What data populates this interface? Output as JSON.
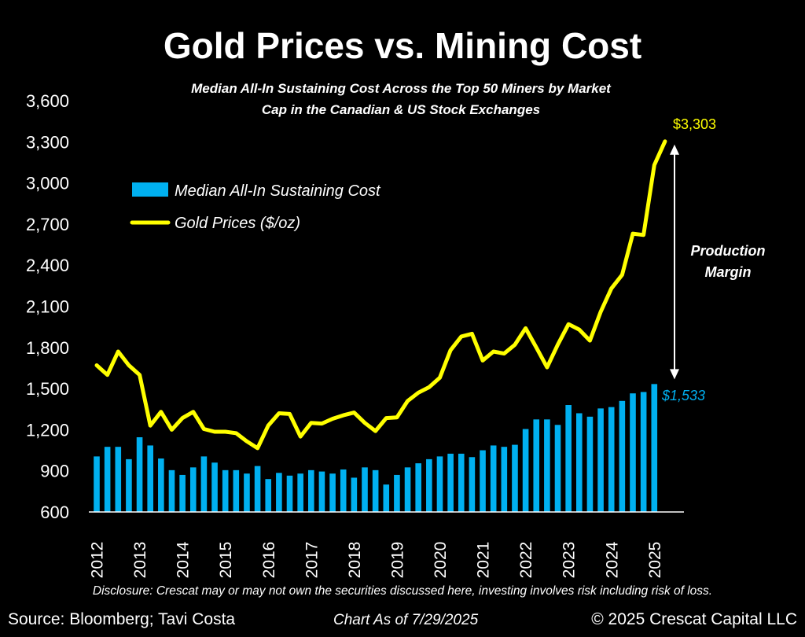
{
  "colors": {
    "bar": "#00b0f0",
    "line": "#ffff00",
    "text": "#ffffff",
    "background": "#000000"
  },
  "chart_data": {
    "type": "bar+line",
    "title": "Gold Prices vs. Mining Cost",
    "subtitle_line1": "Median All-In Sustaining Cost Across the Top 50 Miners by Market",
    "subtitle_line2": "Cap in the Canadian & US Stock Exchanges",
    "ylim": [
      600,
      3600
    ],
    "yticks": [
      "600",
      "900",
      "1,200",
      "1,500",
      "1,800",
      "2,100",
      "2,400",
      "2,700",
      "3,000",
      "3,300",
      "3,600"
    ],
    "xticks": [
      "2012",
      "2013",
      "2014",
      "2015",
      "2016",
      "2017",
      "2018",
      "2019",
      "2020",
      "2021",
      "2022",
      "2023",
      "2024",
      "2025"
    ],
    "grid": false,
    "legend_position": "upper-left",
    "series": [
      {
        "name": "Median All-In Sustaining Cost",
        "kind": "bar",
        "values": [
          1005,
          1075,
          1075,
          985,
          1145,
          1085,
          990,
          905,
          870,
          925,
          1005,
          960,
          905,
          905,
          880,
          935,
          840,
          885,
          865,
          880,
          905,
          895,
          880,
          910,
          850,
          925,
          905,
          800,
          870,
          925,
          955,
          985,
          1005,
          1025,
          1025,
          1000,
          1050,
          1085,
          1075,
          1090,
          1205,
          1275,
          1275,
          1235,
          1380,
          1320,
          1295,
          1355,
          1365,
          1410,
          1465,
          1475,
          1533
        ]
      },
      {
        "name": "Gold Prices ($/oz)",
        "kind": "line",
        "values": [
          1670,
          1600,
          1770,
          1670,
          1600,
          1230,
          1330,
          1200,
          1285,
          1330,
          1205,
          1185,
          1185,
          1175,
          1115,
          1065,
          1230,
          1320,
          1315,
          1150,
          1250,
          1245,
          1280,
          1305,
          1325,
          1250,
          1190,
          1285,
          1290,
          1410,
          1470,
          1510,
          1580,
          1780,
          1880,
          1900,
          1705,
          1770,
          1755,
          1820,
          1940,
          1800,
          1655,
          1820,
          1970,
          1930,
          1850,
          2060,
          2230,
          2330,
          2630,
          2620,
          3130,
          3303
        ]
      }
    ],
    "annotations": {
      "gold_end_label": "$3,303",
      "cost_end_label": "$1,533",
      "margin_label_line1": "Production",
      "margin_label_line2": "Margin"
    }
  },
  "footer": {
    "disclosure": "Disclosure: Crescat may or may not own the securities discussed here, investing involves risk including risk of loss.",
    "source": "Source: Bloomberg; Tavi Costa",
    "chart_date": "Chart As of 7/29/2025",
    "copyright": "© 2025 Crescat Capital LLC"
  }
}
